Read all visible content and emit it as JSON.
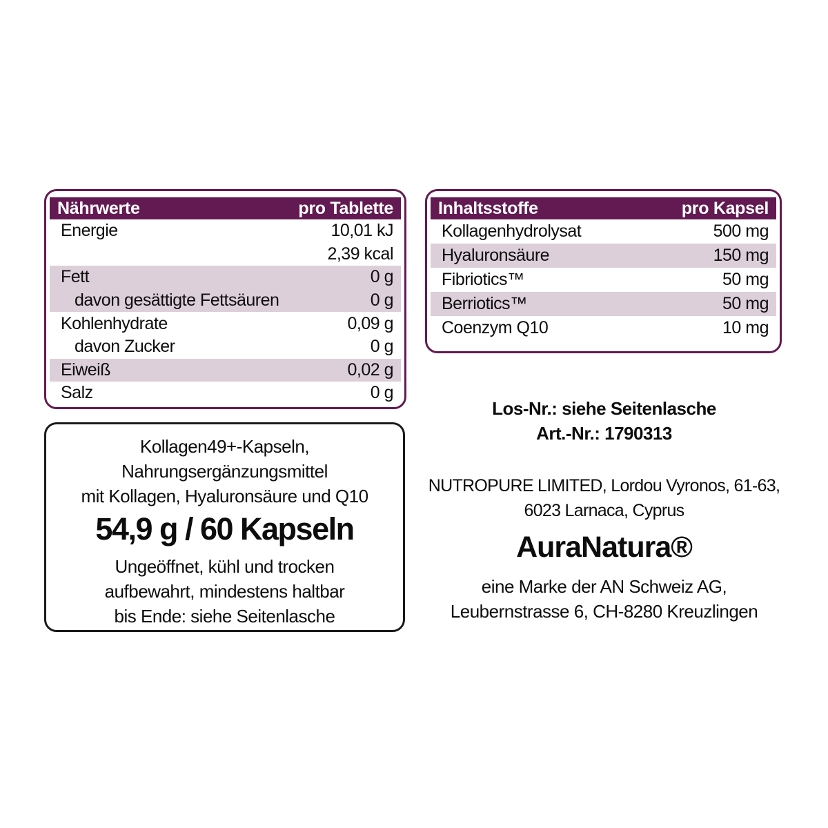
{
  "colors": {
    "header_bg": "#631a53",
    "table_border": "#631a53",
    "row_shade": "#dccfd9",
    "box_border": "#1a1a1a",
    "text": "#0d0d0d",
    "page_bg": "#ffffff",
    "header_text": "#ffffff"
  },
  "nutrition_table": {
    "header": {
      "left": "Nährwerte",
      "right": "pro Tablette"
    },
    "rows": [
      {
        "label": "Energie",
        "value": "10,01 kJ",
        "shaded": false,
        "indent": false
      },
      {
        "label": "",
        "value": "2,39 kcal",
        "shaded": false,
        "indent": false
      },
      {
        "label": "Fett",
        "value": "0 g",
        "shaded": true,
        "indent": false
      },
      {
        "label": "davon gesättigte Fettsäuren",
        "value": "0 g",
        "shaded": true,
        "indent": true
      },
      {
        "label": "Kohlenhydrate",
        "value": "0,09 g",
        "shaded": false,
        "indent": false
      },
      {
        "label": "davon Zucker",
        "value": "0 g",
        "shaded": false,
        "indent": true
      },
      {
        "label": "Eiweiß",
        "value": "0,02 g",
        "shaded": true,
        "indent": false
      },
      {
        "label": "Salz",
        "value": "0 g",
        "shaded": false,
        "indent": false
      }
    ]
  },
  "ingredients_table": {
    "header": {
      "left": "Inhaltsstoffe",
      "right": "pro Kapsel"
    },
    "rows": [
      {
        "label": "Kollagenhydrolysat",
        "value": "500 mg",
        "shaded": false,
        "indent": false
      },
      {
        "label": "Hyaluronsäure",
        "value": "150 mg",
        "shaded": true,
        "indent": false
      },
      {
        "label": "Fibriotics™",
        "value": "50 mg",
        "shaded": false,
        "indent": false
      },
      {
        "label": "Berriotics™",
        "value": "50 mg",
        "shaded": true,
        "indent": false
      },
      {
        "label": "Coenzym Q10",
        "value": "10 mg",
        "shaded": false,
        "indent": false
      }
    ]
  },
  "product_box": {
    "description_lines": [
      "Kollagen49+-Kapseln,",
      "Nahrungsergänzungsmittel",
      "mit Kollagen, Hyaluronsäure und Q10"
    ],
    "quantity": "54,9 g / 60 Kapseln",
    "storage_lines": [
      "Ungeöffnet, kühl und trocken",
      "aufbewahrt, mindestens haltbar",
      "bis Ende: siehe Seitenlasche"
    ]
  },
  "info": {
    "lot_line": "Los-Nr.: siehe Seitenlasche",
    "article_line": "Art.-Nr.: 1790313",
    "manufacturer_lines": [
      "NUTROPURE LIMITED, Lordou Vyronos, 61-63,",
      "6023 Larnaca, Cyprus"
    ],
    "brand": "AuraNatura®",
    "brand_sub_lines": [
      "eine Marke der AN Schweiz AG,",
      "Leubernstrasse 6, CH-8280 Kreuzlingen"
    ]
  }
}
